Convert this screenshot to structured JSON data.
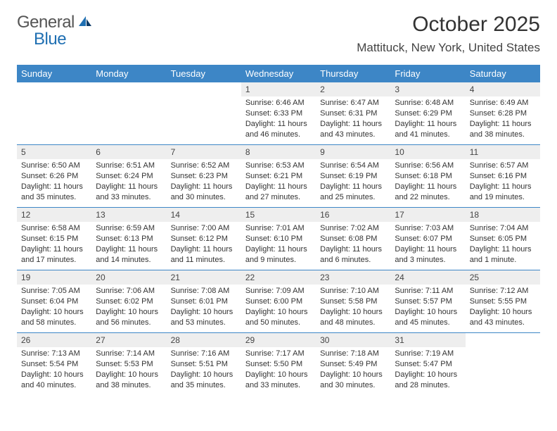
{
  "logo": {
    "word1": "General",
    "word2": "Blue"
  },
  "title": "October 2025",
  "location": "Mattituck, New York, United States",
  "colors": {
    "header_bg": "#3d86c6",
    "header_text": "#ffffff",
    "daynum_bg": "#eeeeee",
    "week_border": "#3d86c6",
    "text": "#333333",
    "logo_gray": "#555555",
    "logo_blue": "#1f6fb2",
    "background": "#ffffff"
  },
  "fonts": {
    "title_size": 30,
    "location_size": 17,
    "dayhead_size": 13,
    "body_size": 11
  },
  "day_names": [
    "Sunday",
    "Monday",
    "Tuesday",
    "Wednesday",
    "Thursday",
    "Friday",
    "Saturday"
  ],
  "weeks": [
    [
      {
        "day": "",
        "sunrise": "",
        "sunset": "",
        "daylight1": "",
        "daylight2": ""
      },
      {
        "day": "",
        "sunrise": "",
        "sunset": "",
        "daylight1": "",
        "daylight2": ""
      },
      {
        "day": "",
        "sunrise": "",
        "sunset": "",
        "daylight1": "",
        "daylight2": ""
      },
      {
        "day": "1",
        "sunrise": "Sunrise: 6:46 AM",
        "sunset": "Sunset: 6:33 PM",
        "daylight1": "Daylight: 11 hours",
        "daylight2": "and 46 minutes."
      },
      {
        "day": "2",
        "sunrise": "Sunrise: 6:47 AM",
        "sunset": "Sunset: 6:31 PM",
        "daylight1": "Daylight: 11 hours",
        "daylight2": "and 43 minutes."
      },
      {
        "day": "3",
        "sunrise": "Sunrise: 6:48 AM",
        "sunset": "Sunset: 6:29 PM",
        "daylight1": "Daylight: 11 hours",
        "daylight2": "and 41 minutes."
      },
      {
        "day": "4",
        "sunrise": "Sunrise: 6:49 AM",
        "sunset": "Sunset: 6:28 PM",
        "daylight1": "Daylight: 11 hours",
        "daylight2": "and 38 minutes."
      }
    ],
    [
      {
        "day": "5",
        "sunrise": "Sunrise: 6:50 AM",
        "sunset": "Sunset: 6:26 PM",
        "daylight1": "Daylight: 11 hours",
        "daylight2": "and 35 minutes."
      },
      {
        "day": "6",
        "sunrise": "Sunrise: 6:51 AM",
        "sunset": "Sunset: 6:24 PM",
        "daylight1": "Daylight: 11 hours",
        "daylight2": "and 33 minutes."
      },
      {
        "day": "7",
        "sunrise": "Sunrise: 6:52 AM",
        "sunset": "Sunset: 6:23 PM",
        "daylight1": "Daylight: 11 hours",
        "daylight2": "and 30 minutes."
      },
      {
        "day": "8",
        "sunrise": "Sunrise: 6:53 AM",
        "sunset": "Sunset: 6:21 PM",
        "daylight1": "Daylight: 11 hours",
        "daylight2": "and 27 minutes."
      },
      {
        "day": "9",
        "sunrise": "Sunrise: 6:54 AM",
        "sunset": "Sunset: 6:19 PM",
        "daylight1": "Daylight: 11 hours",
        "daylight2": "and 25 minutes."
      },
      {
        "day": "10",
        "sunrise": "Sunrise: 6:56 AM",
        "sunset": "Sunset: 6:18 PM",
        "daylight1": "Daylight: 11 hours",
        "daylight2": "and 22 minutes."
      },
      {
        "day": "11",
        "sunrise": "Sunrise: 6:57 AM",
        "sunset": "Sunset: 6:16 PM",
        "daylight1": "Daylight: 11 hours",
        "daylight2": "and 19 minutes."
      }
    ],
    [
      {
        "day": "12",
        "sunrise": "Sunrise: 6:58 AM",
        "sunset": "Sunset: 6:15 PM",
        "daylight1": "Daylight: 11 hours",
        "daylight2": "and 17 minutes."
      },
      {
        "day": "13",
        "sunrise": "Sunrise: 6:59 AM",
        "sunset": "Sunset: 6:13 PM",
        "daylight1": "Daylight: 11 hours",
        "daylight2": "and 14 minutes."
      },
      {
        "day": "14",
        "sunrise": "Sunrise: 7:00 AM",
        "sunset": "Sunset: 6:12 PM",
        "daylight1": "Daylight: 11 hours",
        "daylight2": "and 11 minutes."
      },
      {
        "day": "15",
        "sunrise": "Sunrise: 7:01 AM",
        "sunset": "Sunset: 6:10 PM",
        "daylight1": "Daylight: 11 hours",
        "daylight2": "and 9 minutes."
      },
      {
        "day": "16",
        "sunrise": "Sunrise: 7:02 AM",
        "sunset": "Sunset: 6:08 PM",
        "daylight1": "Daylight: 11 hours",
        "daylight2": "and 6 minutes."
      },
      {
        "day": "17",
        "sunrise": "Sunrise: 7:03 AM",
        "sunset": "Sunset: 6:07 PM",
        "daylight1": "Daylight: 11 hours",
        "daylight2": "and 3 minutes."
      },
      {
        "day": "18",
        "sunrise": "Sunrise: 7:04 AM",
        "sunset": "Sunset: 6:05 PM",
        "daylight1": "Daylight: 11 hours",
        "daylight2": "and 1 minute."
      }
    ],
    [
      {
        "day": "19",
        "sunrise": "Sunrise: 7:05 AM",
        "sunset": "Sunset: 6:04 PM",
        "daylight1": "Daylight: 10 hours",
        "daylight2": "and 58 minutes."
      },
      {
        "day": "20",
        "sunrise": "Sunrise: 7:06 AM",
        "sunset": "Sunset: 6:02 PM",
        "daylight1": "Daylight: 10 hours",
        "daylight2": "and 56 minutes."
      },
      {
        "day": "21",
        "sunrise": "Sunrise: 7:08 AM",
        "sunset": "Sunset: 6:01 PM",
        "daylight1": "Daylight: 10 hours",
        "daylight2": "and 53 minutes."
      },
      {
        "day": "22",
        "sunrise": "Sunrise: 7:09 AM",
        "sunset": "Sunset: 6:00 PM",
        "daylight1": "Daylight: 10 hours",
        "daylight2": "and 50 minutes."
      },
      {
        "day": "23",
        "sunrise": "Sunrise: 7:10 AM",
        "sunset": "Sunset: 5:58 PM",
        "daylight1": "Daylight: 10 hours",
        "daylight2": "and 48 minutes."
      },
      {
        "day": "24",
        "sunrise": "Sunrise: 7:11 AM",
        "sunset": "Sunset: 5:57 PM",
        "daylight1": "Daylight: 10 hours",
        "daylight2": "and 45 minutes."
      },
      {
        "day": "25",
        "sunrise": "Sunrise: 7:12 AM",
        "sunset": "Sunset: 5:55 PM",
        "daylight1": "Daylight: 10 hours",
        "daylight2": "and 43 minutes."
      }
    ],
    [
      {
        "day": "26",
        "sunrise": "Sunrise: 7:13 AM",
        "sunset": "Sunset: 5:54 PM",
        "daylight1": "Daylight: 10 hours",
        "daylight2": "and 40 minutes."
      },
      {
        "day": "27",
        "sunrise": "Sunrise: 7:14 AM",
        "sunset": "Sunset: 5:53 PM",
        "daylight1": "Daylight: 10 hours",
        "daylight2": "and 38 minutes."
      },
      {
        "day": "28",
        "sunrise": "Sunrise: 7:16 AM",
        "sunset": "Sunset: 5:51 PM",
        "daylight1": "Daylight: 10 hours",
        "daylight2": "and 35 minutes."
      },
      {
        "day": "29",
        "sunrise": "Sunrise: 7:17 AM",
        "sunset": "Sunset: 5:50 PM",
        "daylight1": "Daylight: 10 hours",
        "daylight2": "and 33 minutes."
      },
      {
        "day": "30",
        "sunrise": "Sunrise: 7:18 AM",
        "sunset": "Sunset: 5:49 PM",
        "daylight1": "Daylight: 10 hours",
        "daylight2": "and 30 minutes."
      },
      {
        "day": "31",
        "sunrise": "Sunrise: 7:19 AM",
        "sunset": "Sunset: 5:47 PM",
        "daylight1": "Daylight: 10 hours",
        "daylight2": "and 28 minutes."
      },
      {
        "day": "",
        "sunrise": "",
        "sunset": "",
        "daylight1": "",
        "daylight2": ""
      }
    ]
  ]
}
